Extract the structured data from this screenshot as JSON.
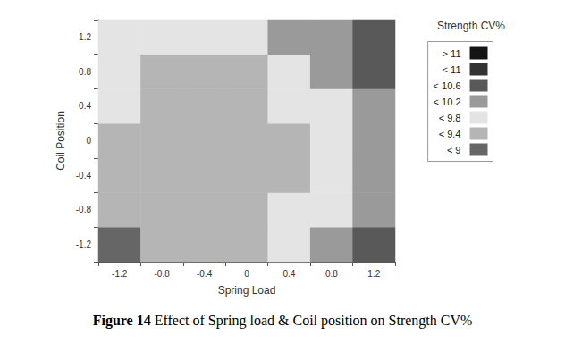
{
  "chart_data": {
    "type": "heatmap",
    "figure_label": "Figure 14",
    "title": "Effect of Spring load & Coil position on Strength CV%",
    "x_label": "Spring Load",
    "y_label": "Coil Position",
    "z_label": "Strength CV%",
    "x": [
      -1.2,
      -0.8,
      -0.4,
      0,
      0.4,
      0.8,
      1.2
    ],
    "y": [
      -1.2,
      -0.8,
      -0.4,
      0,
      0.4,
      0.8,
      1.2
    ],
    "values": [
      [
        8.9,
        9.0,
        9.2,
        9.4,
        9.7,
        10.0,
        10.3
      ],
      [
        9.0,
        9.0,
        9.1,
        9.3,
        9.5,
        9.8,
        10.1
      ],
      [
        9.2,
        9.1,
        9.1,
        9.2,
        9.4,
        9.7,
        10.0
      ],
      [
        9.3,
        9.2,
        9.1,
        9.2,
        9.4,
        9.7,
        10.0
      ],
      [
        9.5,
        9.3,
        9.2,
        9.3,
        9.5,
        9.8,
        10.2
      ],
      [
        9.6,
        9.4,
        9.3,
        9.4,
        9.7,
        10.0,
        10.4
      ],
      [
        9.8,
        9.6,
        9.5,
        9.6,
        9.9,
        10.2,
        10.6
      ]
    ],
    "color_bar": {
      "levels": [
        {
          "min": 11,
          "label": "> 11",
          "color": "#141414"
        },
        {
          "min": 10.6,
          "max": 11,
          "label": "< 11",
          "color": "#333333"
        },
        {
          "min": 10.2,
          "max": 10.6,
          "label": "< 10.6",
          "color": "#595959"
        },
        {
          "min": 9.8,
          "max": 10.2,
          "label": "< 10.2",
          "color": "#9a9a9a"
        },
        {
          "min": 9.4,
          "max": 9.8,
          "label": "< 9.8",
          "color": "#e4e4e4"
        },
        {
          "min": 9,
          "max": 9.4,
          "label": "< 9.4",
          "color": "#b5b5b5"
        },
        {
          "max": 9,
          "label": "< 9",
          "color": "#666666"
        }
      ]
    }
  }
}
